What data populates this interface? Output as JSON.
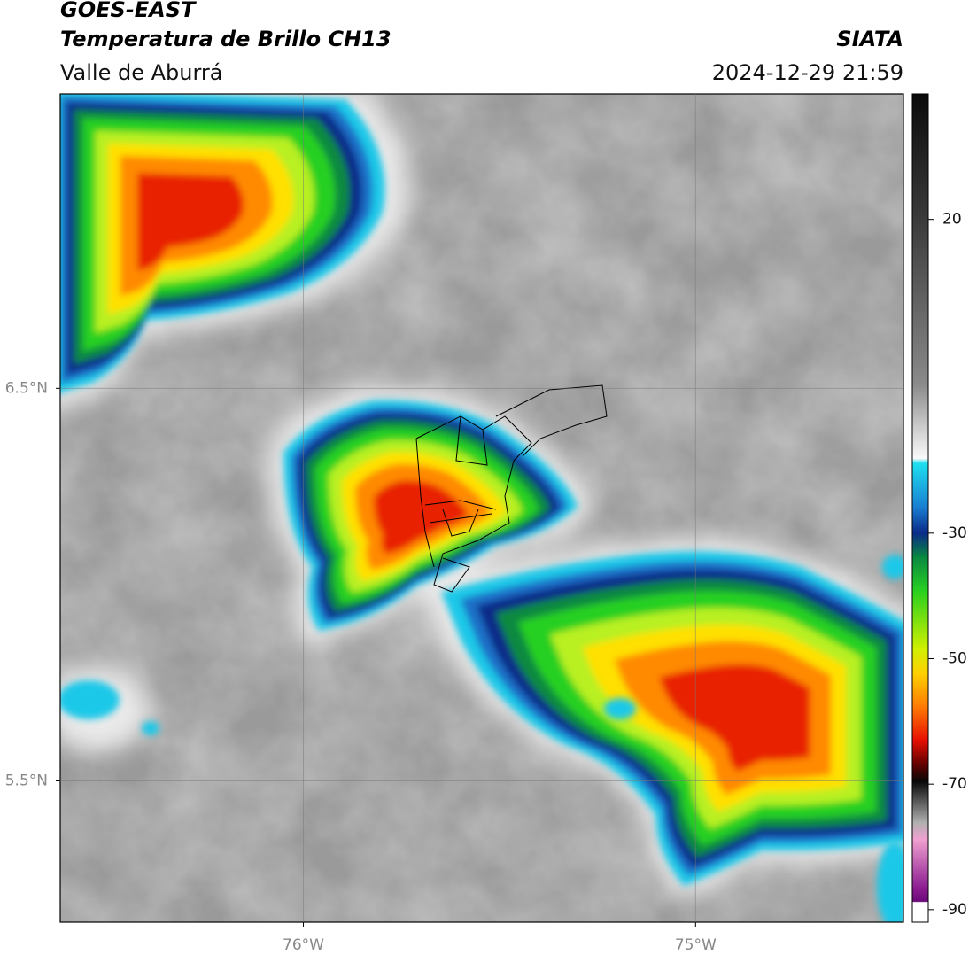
{
  "header": {
    "title": "GOES-EAST",
    "subtitle": "Temperatura de Brillo CH13",
    "region": "Valle de Aburrá",
    "source": "SIATA",
    "timestamp": "2024-12-29 21:59"
  },
  "map": {
    "xlim": [
      -76.62,
      -74.47
    ],
    "ylim": [
      5.14,
      7.25
    ],
    "xticks": [
      {
        "value": -76,
        "label": "76°W"
      },
      {
        "value": -75,
        "label": "75°W"
      }
    ],
    "yticks": [
      {
        "value": 6.5,
        "label": "6.5°N"
      },
      {
        "value": 5.5,
        "label": "5.5°N"
      }
    ],
    "grid": true
  },
  "colorbar": {
    "lim": [
      -92,
      40
    ],
    "ticks": [
      20,
      -30,
      -50,
      -70,
      -90
    ]
  }
}
